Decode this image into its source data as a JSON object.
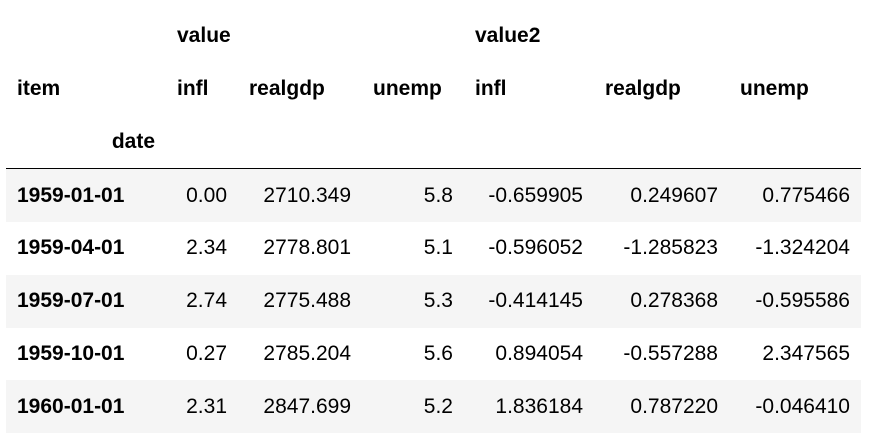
{
  "table": {
    "top_header": {
      "col_blank": "",
      "value": "value",
      "value2": "value2"
    },
    "sub_header": {
      "index_name": "item",
      "columns": [
        "infl",
        "realgdp",
        "unemp",
        "infl",
        "realgdp",
        "unemp"
      ]
    },
    "index_label": "date",
    "rows": [
      {
        "date": "1959-01-01",
        "cells": [
          "0.00",
          "2710.349",
          "5.8",
          "-0.659905",
          "0.249607",
          "0.775466"
        ]
      },
      {
        "date": "1959-04-01",
        "cells": [
          "2.34",
          "2778.801",
          "5.1",
          "-0.596052",
          "-1.285823",
          "-1.324204"
        ]
      },
      {
        "date": "1959-07-01",
        "cells": [
          "2.74",
          "2775.488",
          "5.3",
          "-0.414145",
          "0.278368",
          "-0.595586"
        ]
      },
      {
        "date": "1959-10-01",
        "cells": [
          "0.27",
          "2785.204",
          "5.6",
          "0.894054",
          "-0.557288",
          "2.347565"
        ]
      },
      {
        "date": "1960-01-01",
        "cells": [
          "2.31",
          "2847.699",
          "5.2",
          "1.836184",
          "0.787220",
          "-0.046410"
        ]
      }
    ]
  }
}
